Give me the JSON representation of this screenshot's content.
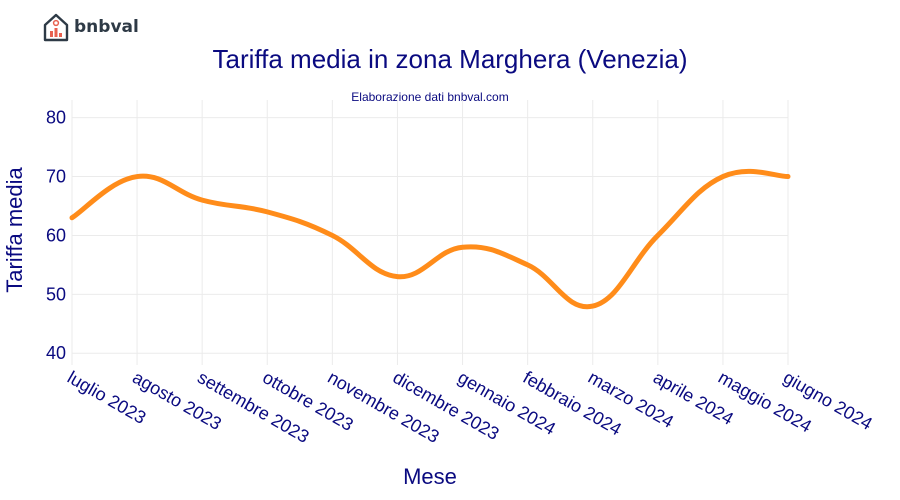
{
  "brand": {
    "name": "bnbval",
    "accent": "#e8614f",
    "dark": "#2e3a46"
  },
  "chart_data": {
    "type": "line",
    "title": "Tariffa media in zona Marghera (Venezia)",
    "subtitle": "Elaborazione dati bnbval.com",
    "xlabel": "Mese",
    "ylabel": "Tariffa media",
    "categories": [
      "luglio 2023",
      "agosto 2023",
      "settembre 2023",
      "ottobre 2023",
      "novembre 2023",
      "dicembre 2023",
      "gennaio 2024",
      "febbraio 2024",
      "marzo 2024",
      "aprile 2024",
      "maggio 2024",
      "giugno 2024"
    ],
    "series": [
      {
        "values": [
          63,
          70,
          66,
          64,
          60,
          53,
          58,
          55,
          48,
          60,
          70,
          70
        ],
        "color": "#ff8c1a"
      }
    ],
    "ylim": [
      38,
      83
    ],
    "yticks": [
      40,
      50,
      60,
      70,
      80
    ],
    "grid": true
  }
}
